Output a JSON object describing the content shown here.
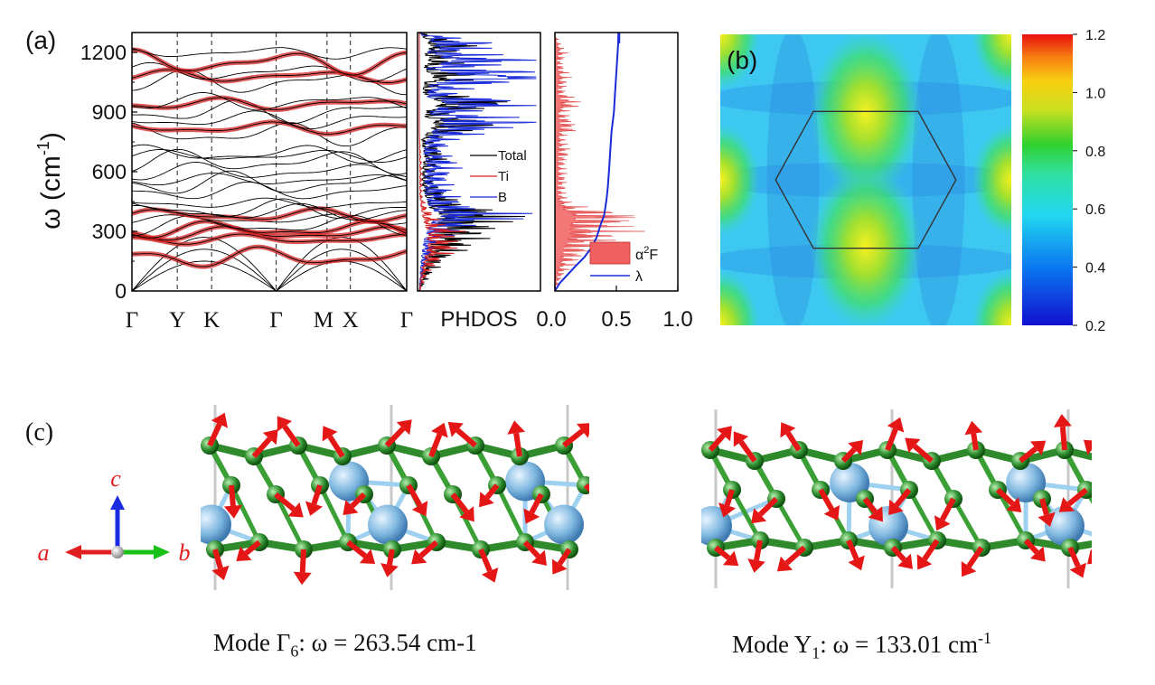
{
  "panels": {
    "a": "(a)",
    "b": "(b)",
    "c": "(c)"
  },
  "chart_data": [
    {
      "type": "line",
      "title": "",
      "ylabel": "ω (cm-1)",
      "ylim": [
        0,
        1300
      ],
      "yticks": [
        0,
        300,
        600,
        900,
        1200
      ],
      "x_tick_labels": [
        "Γ",
        "Y",
        "K",
        "Γ",
        "M",
        "X",
        "Γ"
      ],
      "x_positions": [
        0.0,
        0.165,
        0.29,
        0.525,
        0.71,
        0.795,
        1.0
      ],
      "bands_at_gamma": [
        0,
        0,
        0,
        170,
        260,
        290,
        310,
        330,
        360,
        380,
        395,
        410,
        440,
        500,
        540,
        560,
        600,
        650,
        680,
        690,
        790,
        820,
        860,
        900,
        940,
        950,
        1050,
        1080,
        1100,
        1150,
        1200
      ],
      "red_weight_bands": [
        170,
        260,
        290,
        310,
        380,
        820,
        940,
        1080,
        1150
      ],
      "series": [
        {
          "name": "",
          "color": "#000000"
        },
        {
          "name": "",
          "color": "#d42020"
        }
      ]
    },
    {
      "type": "line",
      "xlabel": "PHDOS",
      "ylim": [
        0,
        1300
      ],
      "series": [
        {
          "name": "Total",
          "color": "#000000",
          "x": [
            0,
            40,
            95,
            160,
            250,
            290,
            330,
            370,
            390,
            420,
            520,
            600,
            680,
            760,
            820,
            840,
            880,
            910,
            940,
            1000,
            1050,
            1080,
            1120,
            1150,
            1200,
            1230,
            1300
          ],
          "y": [
            0.0,
            0.02,
            0.05,
            0.1,
            0.22,
            0.26,
            0.3,
            0.35,
            0.38,
            0.18,
            0.06,
            0.05,
            0.1,
            0.04,
            0.22,
            0.3,
            0.1,
            0.14,
            0.4,
            0.05,
            0.1,
            0.28,
            0.05,
            0.18,
            0.1,
            0.22,
            0.0
          ]
        },
        {
          "name": "Ti",
          "color": "#d42020",
          "x": [
            0,
            100,
            170,
            220,
            260,
            300,
            330,
            380,
            420,
            480,
            600,
            800,
            1300
          ],
          "y": [
            0.0,
            0.04,
            0.1,
            0.16,
            0.14,
            0.18,
            0.1,
            0.06,
            0.03,
            0.01,
            0.01,
            0.0,
            0.0
          ]
        },
        {
          "name": "B",
          "color": "#1a2bd8",
          "x": [
            0,
            150,
            250,
            300,
            340,
            380,
            420,
            480,
            560,
            640,
            700,
            760,
            820,
            850,
            900,
            940,
            980,
            1040,
            1080,
            1120,
            1160,
            1200,
            1240,
            1300
          ],
          "y": [
            0.0,
            0.03,
            0.08,
            0.14,
            0.2,
            0.42,
            0.18,
            0.12,
            0.1,
            0.14,
            0.08,
            0.12,
            0.3,
            0.45,
            0.16,
            0.55,
            0.12,
            0.2,
            0.85,
            0.12,
            0.55,
            0.15,
            0.3,
            0.0
          ]
        }
      ]
    },
    {
      "type": "area",
      "xlim": [
        0.0,
        1.0
      ],
      "ylim": [
        0,
        1300
      ],
      "x_tick_labels": [
        "0.0",
        "0.5",
        "1.0"
      ],
      "series": [
        {
          "name": "α2F",
          "color": "#f06060",
          "x": [
            0,
            50,
            100,
            150,
            200,
            240,
            270,
            300,
            320,
            340,
            360,
            380,
            400,
            420,
            450,
            500,
            560,
            620,
            700,
            780,
            820,
            850,
            900,
            940,
            1000,
            1080,
            1150,
            1200,
            1250,
            1300
          ],
          "y": [
            0.0,
            0.02,
            0.05,
            0.09,
            0.14,
            0.2,
            0.26,
            0.32,
            0.28,
            0.3,
            0.36,
            0.4,
            0.22,
            0.12,
            0.06,
            0.04,
            0.05,
            0.04,
            0.06,
            0.04,
            0.1,
            0.08,
            0.04,
            0.12,
            0.04,
            0.06,
            0.03,
            0.05,
            0.02,
            0.0
          ]
        },
        {
          "name": "λ",
          "color": "#1a2bd8",
          "x": [
            0,
            40,
            80,
            120,
            170,
            220,
            270,
            330,
            380,
            420,
            460,
            520,
            600,
            700,
            800,
            900,
            1000,
            1100,
            1200,
            1300
          ],
          "y": [
            0.0,
            0.04,
            0.1,
            0.16,
            0.24,
            0.3,
            0.34,
            0.37,
            0.4,
            0.41,
            0.42,
            0.43,
            0.44,
            0.45,
            0.46,
            0.48,
            0.49,
            0.5,
            0.51,
            0.52
          ]
        }
      ]
    },
    {
      "type": "heatmap",
      "colorbar_ticks": [
        "0.2",
        "0.4",
        "0.6",
        "0.8",
        "1.0",
        "1.2"
      ],
      "colorbar_range": [
        0.2,
        1.2
      ],
      "hot_spots": [
        {
          "u": 0.5,
          "v": 0.27,
          "value": 1.0
        },
        {
          "u": 0.5,
          "v": 0.73,
          "value": 1.0
        },
        {
          "u": 0.0,
          "v": 0.5,
          "value": 0.95
        },
        {
          "u": 1.0,
          "v": 0.5,
          "value": 0.95
        },
        {
          "u": 0.0,
          "v": 0.0,
          "value": 0.95
        },
        {
          "u": 1.0,
          "v": 0.0,
          "value": 0.95
        },
        {
          "u": 0.0,
          "v": 1.0,
          "value": 0.95
        },
        {
          "u": 1.0,
          "v": 1.0,
          "value": 0.95
        }
      ],
      "background_value": 0.6
    }
  ],
  "axes_labels": {
    "a": "a",
    "b": "b",
    "c": "c"
  },
  "colors": {
    "a_axis": "#e02020",
    "b_axis": "#18c018",
    "c_axis": "#1a2be0",
    "boron": "#2f8f2f",
    "titanium": "#7fb8e0",
    "arrow": "#e41616"
  },
  "captions": {
    "left_mode": "Mode Γ",
    "left_sub": "6",
    "left_eq": ": ω = 263.54 cm-1",
    "right_mode": "Mode Y",
    "right_sub": "1",
    "right_eq": ": ω = 133.01 cm",
    "right_sup": "-1"
  }
}
